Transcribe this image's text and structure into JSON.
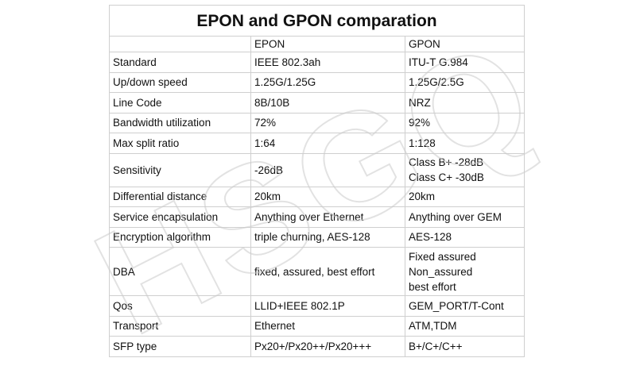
{
  "title": "EPON and GPON comparation",
  "watermark": "HSGQ",
  "columns": [
    "",
    "EPON",
    "GPON"
  ],
  "rows": [
    {
      "feature": "Standard",
      "epon": [
        "IEEE 802.3ah"
      ],
      "gpon": [
        "ITU-T G.984"
      ]
    },
    {
      "feature": "Up/down speed",
      "epon": [
        "1.25G/1.25G"
      ],
      "gpon": [
        "1.25G/2.5G"
      ]
    },
    {
      "feature": "Line Code",
      "epon": [
        "8B/10B"
      ],
      "gpon": [
        "NRZ"
      ]
    },
    {
      "feature": "Bandwidth utilization",
      "epon": [
        "72%"
      ],
      "gpon": [
        "92%"
      ]
    },
    {
      "feature": "Max split ratio",
      "epon": [
        "1:64"
      ],
      "gpon": [
        "1:128"
      ]
    },
    {
      "feature": "Sensitivity",
      "epon": [
        "-26dB"
      ],
      "gpon": [
        "Class B+  -28dB",
        "Class C+  -30dB"
      ]
    },
    {
      "feature": "Differential distance",
      "epon": [
        "20km"
      ],
      "gpon": [
        "20km"
      ]
    },
    {
      "feature": "Service encapsulation",
      "epon": [
        "Anything over Ethernet"
      ],
      "gpon": [
        "Anything over GEM"
      ]
    },
    {
      "feature": "Encryption algorithm",
      "epon": [
        "triple churning, AES-128"
      ],
      "gpon": [
        "AES-128"
      ]
    },
    {
      "feature": "DBA",
      "epon": [
        "fixed, assured, best effort"
      ],
      "gpon": [
        "Fixed assured",
        "Non_assured",
        "best effort"
      ]
    },
    {
      "feature": "Qos",
      "epon": [
        "LLID+IEEE 802.1P"
      ],
      "gpon": [
        "GEM_PORT/T-Cont"
      ]
    },
    {
      "feature": "Transport",
      "epon": [
        "Ethernet"
      ],
      "gpon": [
        "ATM,TDM"
      ]
    },
    {
      "feature": "SFP type",
      "epon": [
        "Px20+/Px20++/Px20+++"
      ],
      "gpon": [
        "B+/C+/C++"
      ]
    }
  ]
}
